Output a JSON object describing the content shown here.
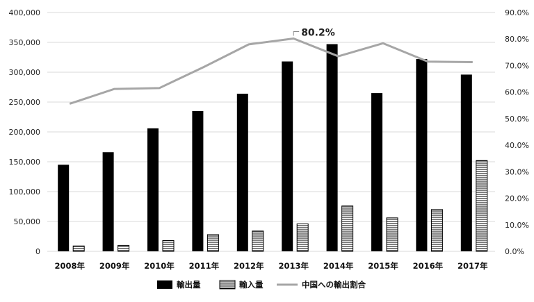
{
  "chart_data": {
    "type": "bar",
    "categories": [
      "2008年",
      "2009年",
      "2010年",
      "2011年",
      "2012年",
      "2013年",
      "2014年",
      "2015年",
      "2016年",
      "2017年"
    ],
    "series": [
      {
        "name": "輸出量",
        "type": "bar",
        "axis": "left",
        "color": "#000000",
        "pattern": "solid",
        "values": [
          145000,
          166000,
          206000,
          235000,
          264000,
          318000,
          347000,
          265000,
          322000,
          296000
        ]
      },
      {
        "name": "輸入量",
        "type": "bar",
        "axis": "left",
        "color": "#ffffff",
        "pattern": "horizontal-stripes",
        "values": [
          9000,
          10000,
          18000,
          28000,
          34000,
          46000,
          76000,
          56000,
          70000,
          152000
        ]
      },
      {
        "name": "中国への輸出割合",
        "type": "line",
        "axis": "right",
        "color": "#a6a6a6",
        "values": [
          55.6,
          61.2,
          61.5,
          69.5,
          78.0,
          80.2,
          73.5,
          78.4,
          71.5,
          71.3
        ]
      }
    ],
    "y_left": {
      "min": 0,
      "max": 400000,
      "step": 50000,
      "ticks": [
        "0",
        "50,000",
        "100,000",
        "150,000",
        "200,000",
        "250,000",
        "300,000",
        "350,000",
        "400,000"
      ]
    },
    "y_right": {
      "min": 0,
      "max": 90,
      "step": 10,
      "ticks": [
        "0.0%",
        "10.0%",
        "20.0%",
        "30.0%",
        "40.0%",
        "50.0%",
        "60.0%",
        "70.0%",
        "80.0%",
        "90.0%"
      ]
    },
    "annotations": [
      {
        "series": "中国への輸出割合",
        "category": "2013年",
        "text": "80.2%"
      }
    ],
    "grid": true,
    "legend_position": "bottom"
  }
}
